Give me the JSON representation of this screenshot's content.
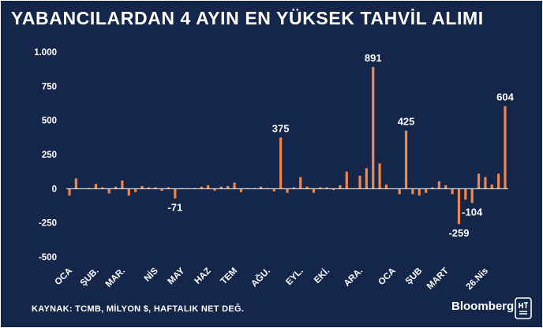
{
  "header": {
    "title": "YABANCILARDAN 4 AYIN EN YÜKSEK TAHVİL ALIMI"
  },
  "footer": {
    "source": "KAYNAK: TCMB, MİLYON $, HAFTALIK NET DEĞ.",
    "brand": "Bloomberg",
    "logo_icon": "ht-logo-icon"
  },
  "colors": {
    "background": "#14264a",
    "bar": "#f0864a",
    "text": "#ffffff",
    "zero_line": "#ffffff"
  },
  "chart_data": {
    "type": "bar",
    "title": "YABANCILARDAN 4 AYIN EN YÜKSEK TAHVİL ALIMI",
    "xlabel": "",
    "ylabel": "",
    "units": "MİLYON $",
    "ylim": [
      -500,
      1000
    ],
    "yticks": [
      -500,
      -250,
      0,
      250,
      500,
      750,
      1000
    ],
    "ytick_labels": [
      "-500",
      "-250",
      "0",
      "250",
      "500",
      "750",
      "1.000"
    ],
    "grid": false,
    "x_labels": [
      {
        "label": "OCA",
        "index": 0
      },
      {
        "label": "ŞUB.",
        "index": 4
      },
      {
        "label": "MAR.",
        "index": 8
      },
      {
        "label": "NİS",
        "index": 13
      },
      {
        "label": "MAY",
        "index": 17
      },
      {
        "label": "HAZ",
        "index": 21
      },
      {
        "label": "TEM",
        "index": 25
      },
      {
        "label": "AĞU.",
        "index": 30
      },
      {
        "label": "EYL.",
        "index": 35
      },
      {
        "label": "EKİ.",
        "index": 39
      },
      {
        "label": "ARA.",
        "index": 44
      },
      {
        "label": "OCA",
        "index": 49
      },
      {
        "label": "ŞUB",
        "index": 53
      },
      {
        "label": "MART",
        "index": 57
      },
      {
        "label": "26.Nis",
        "index": 63
      }
    ],
    "values": [
      -50,
      75,
      0,
      5,
      35,
      10,
      -35,
      15,
      60,
      -50,
      -25,
      20,
      10,
      10,
      -15,
      10,
      -71,
      5,
      0,
      5,
      15,
      25,
      -15,
      15,
      20,
      45,
      -25,
      5,
      5,
      15,
      5,
      -20,
      375,
      -30,
      10,
      85,
      15,
      -30,
      10,
      10,
      -10,
      25,
      125,
      0,
      95,
      150,
      891,
      185,
      30,
      0,
      -40,
      425,
      -40,
      -50,
      -30,
      10,
      55,
      25,
      -40,
      -259,
      -80,
      -104,
      110,
      85,
      30,
      110,
      604
    ],
    "annotations": [
      {
        "text": "-71",
        "index": 16,
        "value": -71
      },
      {
        "text": "375",
        "index": 32,
        "value": 375
      },
      {
        "text": "891",
        "index": 46,
        "value": 891
      },
      {
        "text": "425",
        "index": 51,
        "value": 425
      },
      {
        "text": "-259",
        "index": 59,
        "value": -259
      },
      {
        "text": "-104",
        "index": 61,
        "value": -104
      },
      {
        "text": "604",
        "index": 66,
        "value": 604
      }
    ]
  }
}
